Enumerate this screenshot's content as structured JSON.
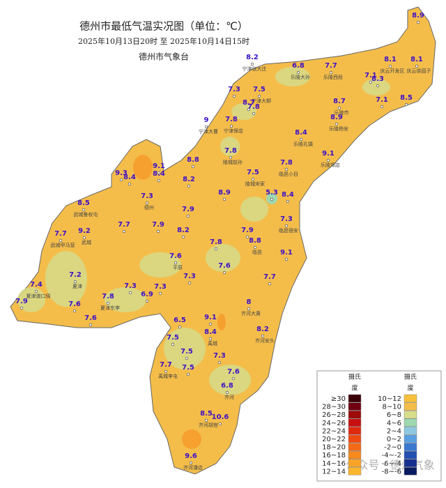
{
  "header": {
    "title": "德州市最低气温实况图（单位：℃）",
    "subtitle": "2025年10月13日20时  至  2025年10月14日15时",
    "org": "德州市气象台"
  },
  "map": {
    "fill": "#f4bd4a",
    "stations": [
      {
        "value": 8.9
      },
      {
        "value": 8.2,
        "name": "宁津张大庄"
      },
      {
        "value": 6.8,
        "name": "乐陵大孙"
      },
      {
        "value": 7.7,
        "name": "乐陵西段"
      },
      {
        "value": 8.1,
        "name": "庆云开发区"
      },
      {
        "value": 8.1,
        "name": "庆云徐园子"
      },
      {
        "value": 7.1
      },
      {
        "value": 8.3
      },
      {
        "value": 7.3
      },
      {
        "value": 7.5,
        "name": "宁津大柳"
      },
      {
        "value": 8.7
      },
      {
        "value": 7.8
      },
      {
        "value": 8.7,
        "name": "乐陵市"
      },
      {
        "value": 7.1
      },
      {
        "value": 8.5
      },
      {
        "value": 8.9,
        "name": "乐陵杨安"
      },
      {
        "value": 9,
        "name": "宁津大曹"
      },
      {
        "value": 7.8,
        "name": "宁津保店"
      },
      {
        "value": 8.4,
        "name": "乐陵孔镇"
      },
      {
        "value": 7.8,
        "name": "陵城前孙"
      },
      {
        "value": 9.1,
        "name": "乐陵郑店"
      },
      {
        "value": 9.1
      },
      {
        "value": 8.8
      },
      {
        "value": 7.8,
        "name": "临邑小目"
      },
      {
        "value": 9.3
      },
      {
        "value": 8.4
      },
      {
        "value": 8.4
      },
      {
        "value": 7.5,
        "name": "陵城宋家"
      },
      {
        "value": 8.2
      },
      {
        "value": 5.3
      },
      {
        "value": 8.4
      },
      {
        "value": 7.3,
        "name": "德州"
      },
      {
        "value": 8.9
      },
      {
        "value": 8.5,
        "name": "武城鲁权屯"
      },
      {
        "value": 7.9
      },
      {
        "value": 7.3,
        "name": "临邑宿安"
      },
      {
        "value": 7.7
      },
      {
        "value": 7.9
      },
      {
        "value": 8.2
      },
      {
        "value": 9.2,
        "name": "武城"
      },
      {
        "value": 7.7,
        "name": "武城甲马营"
      },
      {
        "value": 7.9
      },
      {
        "value": 8.8,
        "name": "临邑"
      },
      {
        "value": 7.8
      },
      {
        "value": 9.1
      },
      {
        "value": 7.6,
        "name": "平原"
      },
      {
        "value": 7.6
      },
      {
        "value": 7.2,
        "name": "夏津"
      },
      {
        "value": 7.3
      },
      {
        "value": 7.7
      },
      {
        "value": 7.4,
        "name": "夏津渡口驿"
      },
      {
        "value": 7.8,
        "name": "夏津东李"
      },
      {
        "value": 7.3
      },
      {
        "value": 6.9
      },
      {
        "value": 7.3
      },
      {
        "value": 7.9
      },
      {
        "value": 7.6
      },
      {
        "value": 7.6
      },
      {
        "value": 8,
        "name": "齐河大黄"
      },
      {
        "value": 9.1
      },
      {
        "value": 6.5
      },
      {
        "value": 8.4,
        "name": "禹城"
      },
      {
        "value": 8.2,
        "name": "齐河安头"
      },
      {
        "value": 7.5
      },
      {
        "value": 7.5
      },
      {
        "value": 7.3
      },
      {
        "value": 7.7,
        "name": "禹城李屯"
      },
      {
        "value": 7.5
      },
      {
        "value": 7.6
      },
      {
        "value": 6.8,
        "name": "齐河"
      },
      {
        "value": 8.5,
        "name": "齐河胡官"
      },
      {
        "value": 10.6
      },
      {
        "value": 9.6,
        "name": "齐河潘店"
      }
    ]
  },
  "legend": {
    "left_header": [
      "摄氏",
      "度"
    ],
    "right_header": [
      "摄氏",
      "度"
    ],
    "left": [
      {
        "label": "≥30",
        "color": "#3a0008"
      },
      {
        "label": "28~30",
        "color": "#6e0010"
      },
      {
        "label": "26~28",
        "color": "#9c0a0a"
      },
      {
        "label": "24~26",
        "color": "#c81010"
      },
      {
        "label": "22~24",
        "color": "#e02a10"
      },
      {
        "label": "20~22",
        "color": "#ee4a12"
      },
      {
        "label": "18~20",
        "color": "#f36a18"
      },
      {
        "label": "16~18",
        "color": "#f68a1e"
      },
      {
        "label": "14~16",
        "color": "#f9a428"
      },
      {
        "label": "12~14",
        "color": "#f9b52c"
      }
    ],
    "right": [
      {
        "label": "10~12",
        "color": "#f6c03a"
      },
      {
        "label": "8~10",
        "color": "#f4bd4a"
      },
      {
        "label": "6~8",
        "color": "#d6dc8a"
      },
      {
        "label": "4~6",
        "color": "#9ed8b0"
      },
      {
        "label": "2~4",
        "color": "#8ec8e0"
      },
      {
        "label": "0~2",
        "color": "#5aa0e0"
      },
      {
        "label": "-2~0",
        "color": "#3a78d0"
      },
      {
        "label": "-4~-2",
        "color": "#2450b0"
      },
      {
        "label": "-6~-4",
        "color": "#163090"
      },
      {
        "label": "-8~-6",
        "color": "#0a1a60"
      }
    ]
  },
  "watermark": "公众号 · 德州气象"
}
